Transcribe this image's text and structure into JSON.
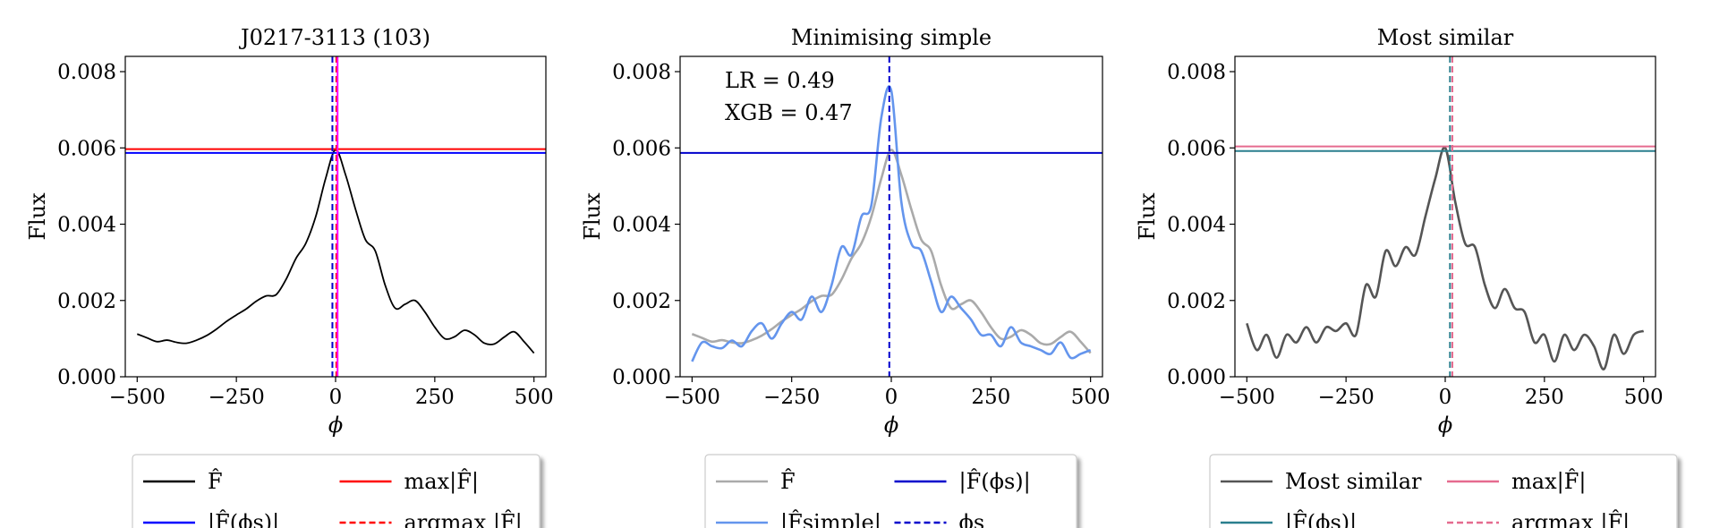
{
  "chart_data": [
    {
      "type": "line",
      "title": "J0217-3113 (103)",
      "xlabel": "ϕ",
      "ylabel": "Flux",
      "xlim": [
        -530,
        530
      ],
      "ylim": [
        0.0,
        0.0084
      ],
      "xticks": [
        -500,
        -250,
        0,
        250,
        500
      ],
      "xtick_labels": [
        "−500",
        "−250",
        "0",
        "250",
        "500"
      ],
      "yticks": [
        0.0,
        0.002,
        0.004,
        0.006,
        0.008
      ],
      "ytick_labels": [
        "0.000",
        "0.002",
        "0.004",
        "0.006",
        "0.008"
      ],
      "series": [
        {
          "name": "F̂",
          "color": "#000000",
          "x": [
            -500,
            -475,
            -450,
            -425,
            -400,
            -375,
            -350,
            -325,
            -300,
            -275,
            -250,
            -225,
            -200,
            -175,
            -150,
            -125,
            -100,
            -75,
            -50,
            -25,
            0,
            25,
            50,
            75,
            100,
            125,
            150,
            175,
            200,
            225,
            250,
            275,
            300,
            325,
            350,
            375,
            400,
            425,
            450,
            475,
            500
          ],
          "y": [
            0.00112,
            0.00102,
            0.00092,
            0.00096,
            0.0009,
            0.00088,
            0.00096,
            0.00108,
            0.00125,
            0.00145,
            0.00162,
            0.00178,
            0.00198,
            0.00212,
            0.00215,
            0.00255,
            0.0031,
            0.0035,
            0.0042,
            0.0052,
            0.00595,
            0.0053,
            0.0044,
            0.0036,
            0.0033,
            0.0024,
            0.0018,
            0.0019,
            0.002,
            0.0017,
            0.0013,
            0.001,
            0.00105,
            0.00122,
            0.0011,
            0.00088,
            0.00086,
            0.00104,
            0.00118,
            0.00092,
            0.00062
          ]
        }
      ],
      "hlines": [
        {
          "name": "max|F̂|",
          "y": 0.00597,
          "color": "#ff0000",
          "style": "solid"
        },
        {
          "name": "|F̂(ϕs)|",
          "y": 0.00587,
          "color": "#0000ff",
          "style": "solid"
        }
      ],
      "vlines": [
        {
          "name": "ϕs",
          "x": -8,
          "color": "#0000cc",
          "style": "dashed"
        },
        {
          "name": "argmax |F̂|",
          "x": 2,
          "color": "#ff0000",
          "style": "dashed"
        },
        {
          "name": "",
          "x": 5,
          "color": "#ff00ff",
          "style": "solid"
        }
      ],
      "legend": {
        "placement": "below",
        "entries": [
          {
            "text": "F̂",
            "color": "#000000",
            "style": "solid"
          },
          {
            "text": "max|F̂|",
            "color": "#ff0000",
            "style": "solid"
          },
          {
            "text": "|F̂(ϕs)|",
            "color": "#0000ff",
            "style": "solid"
          },
          {
            "text": "argmax |F̂|",
            "color": "#ff0000",
            "style": "dashed"
          }
        ]
      }
    },
    {
      "type": "line",
      "title": "Minimising simple",
      "xlabel": "ϕ",
      "ylabel": "Flux",
      "xlim": [
        -530,
        530
      ],
      "ylim": [
        0.0,
        0.0084
      ],
      "xticks": [
        -500,
        -250,
        0,
        250,
        500
      ],
      "xtick_labels": [
        "−500",
        "−250",
        "0",
        "250",
        "500"
      ],
      "yticks": [
        0.0,
        0.002,
        0.004,
        0.006,
        0.008
      ],
      "ytick_labels": [
        "0.000",
        "0.002",
        "0.004",
        "0.006",
        "0.008"
      ],
      "annotations": [
        "LR = 0.49",
        "XGB = 0.47"
      ],
      "series": [
        {
          "name": "F̂",
          "color": "#aaaaaa",
          "x": [
            -500,
            -475,
            -450,
            -425,
            -400,
            -375,
            -350,
            -325,
            -300,
            -275,
            -250,
            -225,
            -200,
            -175,
            -150,
            -125,
            -100,
            -75,
            -50,
            -25,
            0,
            25,
            50,
            75,
            100,
            125,
            150,
            175,
            200,
            225,
            250,
            275,
            300,
            325,
            350,
            375,
            400,
            425,
            450,
            475,
            500
          ],
          "y": [
            0.00112,
            0.00102,
            0.00092,
            0.00096,
            0.0009,
            0.00088,
            0.00096,
            0.00108,
            0.00125,
            0.00145,
            0.00162,
            0.00178,
            0.00198,
            0.00212,
            0.00215,
            0.00255,
            0.0031,
            0.0035,
            0.0042,
            0.0052,
            0.00595,
            0.0053,
            0.0044,
            0.0036,
            0.0033,
            0.0024,
            0.0018,
            0.0019,
            0.002,
            0.0017,
            0.0013,
            0.001,
            0.00105,
            0.00122,
            0.0011,
            0.00088,
            0.00086,
            0.00104,
            0.00118,
            0.00092,
            0.00062
          ]
        },
        {
          "name": "|F̂simple|",
          "color": "#6495ed",
          "x": [
            -500,
            -475,
            -450,
            -425,
            -400,
            -375,
            -350,
            -325,
            -300,
            -275,
            -250,
            -225,
            -200,
            -175,
            -150,
            -125,
            -100,
            -75,
            -50,
            -25,
            0,
            25,
            50,
            75,
            100,
            125,
            150,
            175,
            200,
            225,
            250,
            275,
            300,
            325,
            350,
            375,
            400,
            425,
            450,
            475,
            500
          ],
          "y": [
            0.0004,
            0.0009,
            0.0008,
            0.00075,
            0.00095,
            0.0008,
            0.0012,
            0.0014,
            0.001,
            0.0014,
            0.0017,
            0.0015,
            0.0021,
            0.0017,
            0.0024,
            0.0034,
            0.0032,
            0.0042,
            0.0045,
            0.0068,
            0.0075,
            0.0046,
            0.0035,
            0.0033,
            0.0025,
            0.0017,
            0.0021,
            0.0018,
            0.0015,
            0.0011,
            0.0011,
            0.0008,
            0.0013,
            0.0009,
            0.0008,
            0.0007,
            0.0006,
            0.0009,
            0.0005,
            0.0006,
            0.0007
          ]
        }
      ],
      "hlines": [
        {
          "name": "|F̂(ϕs)|",
          "y": 0.00587,
          "color": "#0000cc",
          "style": "solid"
        }
      ],
      "vlines": [
        {
          "name": "ϕs",
          "x": -5,
          "color": "#0000cc",
          "style": "dashed"
        }
      ],
      "legend": {
        "placement": "below",
        "entries": [
          {
            "text": "F̂",
            "color": "#aaaaaa",
            "style": "solid"
          },
          {
            "text": "|F̂(ϕs)|",
            "color": "#0000cc",
            "style": "solid"
          },
          {
            "text": "|F̂simple|",
            "color": "#6495ed",
            "style": "solid"
          },
          {
            "text": "ϕs",
            "color": "#0000cc",
            "style": "dashed"
          }
        ]
      }
    },
    {
      "type": "line",
      "title": "Most similar",
      "xlabel": "ϕ",
      "ylabel": "Flux",
      "xlim": [
        -530,
        530
      ],
      "ylim": [
        0.0,
        0.0084
      ],
      "xticks": [
        -500,
        -250,
        0,
        250,
        500
      ],
      "xtick_labels": [
        "−500",
        "−250",
        "0",
        "250",
        "500"
      ],
      "yticks": [
        0.0,
        0.002,
        0.004,
        0.006,
        0.008
      ],
      "ytick_labels": [
        "0.000",
        "0.002",
        "0.004",
        "0.006",
        "0.008"
      ],
      "series": [
        {
          "name": "Most similar",
          "color": "#555555",
          "x": [
            -500,
            -475,
            -450,
            -425,
            -400,
            -375,
            -350,
            -325,
            -300,
            -275,
            -250,
            -225,
            -200,
            -175,
            -150,
            -125,
            -100,
            -75,
            -50,
            -25,
            0,
            25,
            50,
            75,
            100,
            125,
            150,
            175,
            200,
            225,
            250,
            275,
            300,
            325,
            350,
            375,
            400,
            425,
            450,
            475,
            500
          ],
          "y": [
            0.0014,
            0.0007,
            0.0011,
            0.0005,
            0.0011,
            0.0009,
            0.0013,
            0.0009,
            0.0013,
            0.0012,
            0.0014,
            0.0011,
            0.0024,
            0.0021,
            0.0033,
            0.0029,
            0.0034,
            0.0032,
            0.0042,
            0.0052,
            0.006,
            0.0046,
            0.0035,
            0.0034,
            0.0024,
            0.0018,
            0.0023,
            0.0018,
            0.0017,
            0.0009,
            0.0011,
            0.0004,
            0.0011,
            0.0007,
            0.0011,
            0.0008,
            0.0002,
            0.0011,
            0.0006,
            0.0011,
            0.0012
          ]
        }
      ],
      "hlines": [
        {
          "name": "max|F̂|",
          "y": 0.00604,
          "color": "#e56b8f",
          "style": "solid"
        },
        {
          "name": "|F̂(ϕs)|",
          "y": 0.00592,
          "color": "#2a7f8e",
          "style": "solid"
        }
      ],
      "vlines": [
        {
          "name": "ϕs",
          "x": 12,
          "color": "#2a7f8e",
          "style": "dashed"
        },
        {
          "name": "argmax |F̂|",
          "x": 18,
          "color": "#e56b8f",
          "style": "dashed"
        }
      ],
      "legend": {
        "placement": "below",
        "entries": [
          {
            "text": "Most similar",
            "color": "#555555",
            "style": "solid"
          },
          {
            "text": "max|F̂|",
            "color": "#e56b8f",
            "style": "solid"
          },
          {
            "text": "|F̂(ϕs)|",
            "color": "#2a7f8e",
            "style": "solid"
          },
          {
            "text": "argmax |F̂|",
            "color": "#e56b8f",
            "style": "dashed"
          }
        ]
      }
    }
  ]
}
